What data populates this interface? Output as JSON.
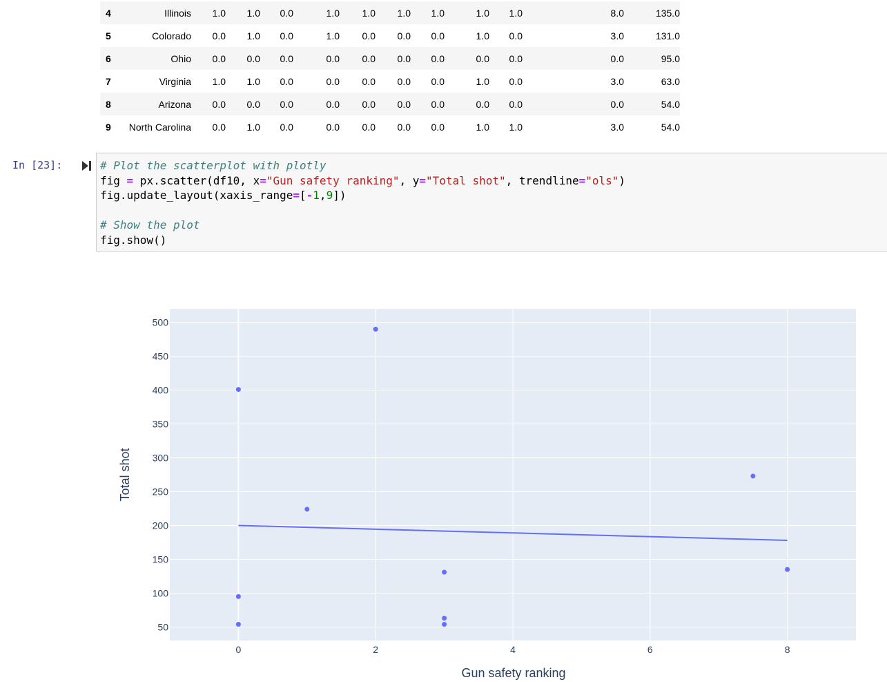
{
  "table": {
    "rows": [
      {
        "index": "4",
        "state": "Illinois",
        "c1": "1.0",
        "c2": "1.0",
        "c3": "0.0",
        "c4": "1.0",
        "c5": "1.0",
        "c6": "1.0",
        "c7": "1.0",
        "c8": "1.0",
        "c9": "1.0",
        "ranking": "8.0",
        "total": "135.0"
      },
      {
        "index": "5",
        "state": "Colorado",
        "c1": "0.0",
        "c2": "1.0",
        "c3": "0.0",
        "c4": "1.0",
        "c5": "0.0",
        "c6": "0.0",
        "c7": "0.0",
        "c8": "1.0",
        "c9": "0.0",
        "ranking": "3.0",
        "total": "131.0"
      },
      {
        "index": "6",
        "state": "Ohio",
        "c1": "0.0",
        "c2": "0.0",
        "c3": "0.0",
        "c4": "0.0",
        "c5": "0.0",
        "c6": "0.0",
        "c7": "0.0",
        "c8": "0.0",
        "c9": "0.0",
        "ranking": "0.0",
        "total": "95.0"
      },
      {
        "index": "7",
        "state": "Virginia",
        "c1": "1.0",
        "c2": "1.0",
        "c3": "0.0",
        "c4": "0.0",
        "c5": "0.0",
        "c6": "0.0",
        "c7": "0.0",
        "c8": "1.0",
        "c9": "0.0",
        "ranking": "3.0",
        "total": "63.0"
      },
      {
        "index": "8",
        "state": "Arizona",
        "c1": "0.0",
        "c2": "0.0",
        "c3": "0.0",
        "c4": "0.0",
        "c5": "0.0",
        "c6": "0.0",
        "c7": "0.0",
        "c8": "0.0",
        "c9": "0.0",
        "ranking": "0.0",
        "total": "54.0"
      },
      {
        "index": "9",
        "state": "North Carolina",
        "c1": "0.0",
        "c2": "1.0",
        "c3": "0.0",
        "c4": "0.0",
        "c5": "0.0",
        "c6": "0.0",
        "c7": "0.0",
        "c8": "1.0",
        "c9": "1.0",
        "ranking": "3.0",
        "total": "54.0"
      }
    ]
  },
  "cell": {
    "prompt": "In [23]:",
    "code_lines": [
      [
        {
          "t": "# Plot the scatterplot with plotly",
          "c": "c-comment"
        }
      ],
      [
        {
          "t": "fig "
        },
        {
          "t": "=",
          "c": "c-op"
        },
        {
          "t": " px.scatter(df10, x"
        },
        {
          "t": "=",
          "c": "c-op"
        },
        {
          "t": "\"Gun safety ranking\"",
          "c": "c-str"
        },
        {
          "t": ", y"
        },
        {
          "t": "=",
          "c": "c-op"
        },
        {
          "t": "\"Total shot\"",
          "c": "c-str"
        },
        {
          "t": ", trendline"
        },
        {
          "t": "=",
          "c": "c-op"
        },
        {
          "t": "\"ols\"",
          "c": "c-str"
        },
        {
          "t": ")"
        }
      ],
      [
        {
          "t": "fig.update_layout(xaxis_range"
        },
        {
          "t": "=",
          "c": "c-op"
        },
        {
          "t": "["
        },
        {
          "t": "-",
          "c": "c-op"
        },
        {
          "t": "1",
          "c": "c-num"
        },
        {
          "t": ","
        },
        {
          "t": "9",
          "c": "c-num"
        },
        {
          "t": "])"
        }
      ],
      [],
      [
        {
          "t": "# Show the plot",
          "c": "c-comment"
        }
      ],
      [
        {
          "t": "fig.show()"
        }
      ]
    ]
  },
  "colors": {
    "plot_bg": "#e5ecf6",
    "marker": "#636efa",
    "grid": "#ffffff",
    "tick_text": "#2a3f5f"
  },
  "chart_data": {
    "type": "scatter",
    "xlabel": "Gun safety ranking",
    "ylabel": "Total shot",
    "xlim": [
      -1,
      9
    ],
    "ylim": [
      30,
      520
    ],
    "x_ticks": [
      0,
      2,
      4,
      6,
      8
    ],
    "y_ticks": [
      50,
      100,
      150,
      200,
      250,
      300,
      350,
      400,
      450,
      500
    ],
    "grid": true,
    "points": [
      {
        "x": 2,
        "y": 490
      },
      {
        "x": 0,
        "y": 401
      },
      {
        "x": 7.5,
        "y": 273
      },
      {
        "x": 1,
        "y": 224
      },
      {
        "x": 8,
        "y": 135
      },
      {
        "x": 3,
        "y": 131
      },
      {
        "x": 0,
        "y": 95
      },
      {
        "x": 3,
        "y": 63
      },
      {
        "x": 0,
        "y": 54
      },
      {
        "x": 3,
        "y": 54
      }
    ],
    "trendline": {
      "type": "ols",
      "x": [
        0,
        8
      ],
      "y": [
        200,
        178
      ]
    }
  }
}
